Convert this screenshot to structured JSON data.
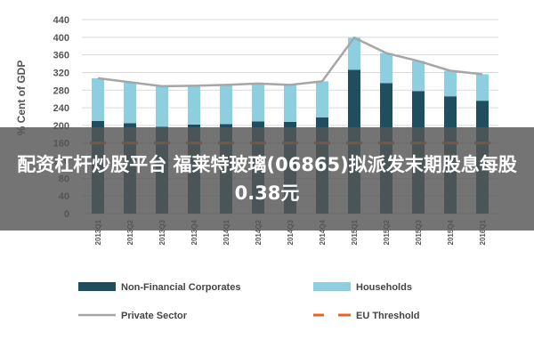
{
  "chart_data": {
    "type": "bar",
    "categories": [
      "2013Q1",
      "2013Q2",
      "2013Q3",
      "2013Q4",
      "2014Q1",
      "2014Q2",
      "2014Q3",
      "2014Q4",
      "2015Q1",
      "2015Q2",
      "2015Q3",
      "2015Q4",
      "2016Q1"
    ],
    "series": [
      {
        "name": "Non-Financial Corporates",
        "kind": "stacked-bar",
        "color": "#1f4e5f",
        "values": [
          210,
          205,
          197,
          202,
          203,
          209,
          208,
          218,
          326,
          296,
          278,
          266,
          256
        ]
      },
      {
        "name": "Households",
        "kind": "stacked-bar",
        "color": "#8ecfdf",
        "values": [
          97,
          93,
          92,
          88,
          89,
          86,
          84,
          82,
          73,
          68,
          68,
          58,
          60
        ]
      },
      {
        "name": "Private Sector",
        "kind": "line",
        "color": "#a6a6a6",
        "values": [
          307,
          298,
          289,
          290,
          292,
          295,
          292,
          300,
          399,
          364,
          346,
          324,
          316
        ]
      },
      {
        "name": "EU Threshold",
        "kind": "dashed-line",
        "color": "#e8641e",
        "values": [
          160,
          160,
          160,
          160,
          160,
          160,
          160,
          160,
          160,
          160,
          160,
          160,
          160
        ]
      }
    ],
    "ylabel": "% Cent of GDP",
    "ylim": [
      0,
      440
    ],
    "yticks": [
      0,
      40,
      80,
      120,
      160,
      200,
      240,
      280,
      320,
      360,
      400,
      440
    ],
    "grid": true,
    "legend_position": "bottom"
  },
  "overlay": {
    "caption": "配资杠杆炒股平台 福莱特玻璃(06865)拟派发末期股息每股0.38元"
  }
}
